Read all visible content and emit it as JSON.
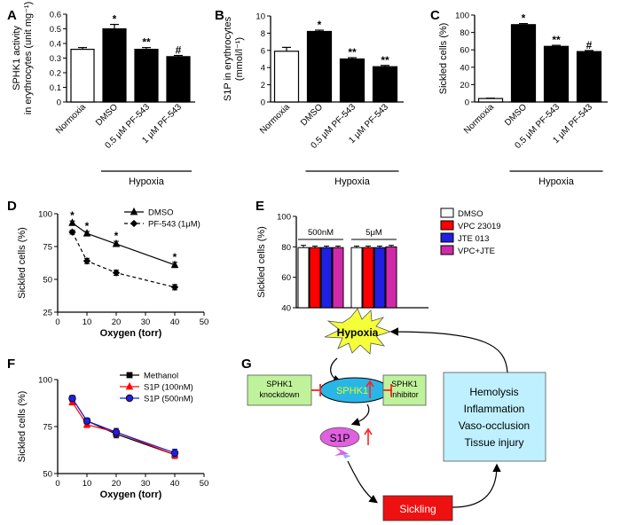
{
  "panels": {
    "A": {
      "label": "A",
      "chart_data": {
        "type": "bar",
        "ylabel": "SPHK1 activity\nin erythrocytes (unit mg⁻¹)",
        "ylim": [
          0,
          0.6
        ],
        "yticks": [
          "0",
          "0.1",
          "0.2",
          "0.3",
          "0.4",
          "0.5",
          "0.6"
        ],
        "categories": [
          "Normoxia",
          "DMSO",
          "0.5 μM PF-543",
          "1 μM PF-543"
        ],
        "values": [
          0.36,
          0.5,
          0.36,
          0.31
        ],
        "errors": [
          0.012,
          0.03,
          0.012,
          0.008
        ],
        "colors": [
          "#ffffff",
          "#000000",
          "#000000",
          "#000000"
        ],
        "annotations": [
          "",
          "*",
          "**",
          "#"
        ],
        "group_label": "Hypoxia"
      }
    },
    "B": {
      "label": "B",
      "chart_data": {
        "type": "bar",
        "ylabel": "S1P in erythrocytes\n(mmol/l⁻¹)",
        "ylim": [
          0,
          10
        ],
        "yticks": [
          "0",
          "2",
          "4",
          "6",
          "8",
          "10"
        ],
        "categories": [
          "Normoxia",
          "DMSO",
          "0.5 μM PF-543",
          "1 μM PF-543"
        ],
        "values": [
          5.9,
          8.2,
          5.0,
          4.1
        ],
        "errors": [
          0.45,
          0.15,
          0.15,
          0.15
        ],
        "colors": [
          "#ffffff",
          "#000000",
          "#000000",
          "#000000"
        ],
        "annotations": [
          "",
          "*",
          "**",
          "**"
        ],
        "group_label": "Hypoxia"
      }
    },
    "C": {
      "label": "C",
      "chart_data": {
        "type": "bar",
        "ylabel": "Sickled cells (%)",
        "ylim": [
          0,
          100
        ],
        "yticks": [
          "0",
          "20",
          "40",
          "60",
          "80",
          "100"
        ],
        "categories": [
          "Normoxia",
          "DMSO",
          "0.5 μM PF-543",
          "1 μM PF-543"
        ],
        "values": [
          4,
          89,
          64,
          58
        ],
        "errors": [
          0.4,
          1.2,
          1.2,
          1.2
        ],
        "colors": [
          "#ffffff",
          "#000000",
          "#000000",
          "#000000"
        ],
        "annotations": [
          "",
          "*",
          "**",
          "#"
        ],
        "group_label": "Hypoxia"
      }
    },
    "D": {
      "label": "D",
      "chart_data": {
        "type": "line",
        "xlabel": "Oxygen (torr)",
        "ylabel": "Sickled cells (%)",
        "xlim": [
          0,
          50
        ],
        "ylim": [
          25,
          100
        ],
        "xticks": [
          "0",
          "10",
          "20",
          "30",
          "40",
          "50"
        ],
        "yticks": [
          "25",
          "50",
          "75",
          "100"
        ],
        "x": [
          5,
          10,
          20,
          40
        ],
        "series": [
          {
            "name": "DMSO",
            "values": [
              93,
              85,
              77,
              61
            ],
            "errors": [
              1.5,
              1.5,
              2,
              2
            ],
            "marker": "triangle",
            "dash": false
          },
          {
            "name": "PF-543 (1μM)",
            "values": [
              86,
              64,
              55,
              44
            ],
            "errors": [
              1.5,
              2,
              2,
              2
            ],
            "marker": "diamond",
            "dash": true
          }
        ],
        "annotations": [
          {
            "x": 5,
            "text": "*"
          },
          {
            "x": 10,
            "text": "*"
          },
          {
            "x": 20,
            "text": "*"
          },
          {
            "x": 40,
            "text": "*"
          }
        ]
      }
    },
    "E": {
      "label": "E",
      "chart_data": {
        "type": "bar",
        "ylabel": "Sickled cells (%)",
        "ylim": [
          40,
          100
        ],
        "yticks": [
          "40",
          "60",
          "80",
          "100"
        ],
        "groups": [
          "500nM",
          "5μM"
        ],
        "series": [
          {
            "name": "DMSO",
            "color": "#ffffff",
            "values": [
              79.5,
              79.5
            ],
            "errors": [
              1.5,
              1
            ]
          },
          {
            "name": "VPC 23019",
            "color": "#ff0000",
            "values": [
              79.5,
              79.5
            ],
            "errors": [
              1,
              1
            ]
          },
          {
            "name": "JTE 013",
            "color": "#2020e0",
            "values": [
              79.5,
              79.5
            ],
            "errors": [
              1,
              1
            ]
          },
          {
            "name": "VPC+JTE",
            "color": "#d02aa8",
            "values": [
              79.5,
              80
            ],
            "errors": [
              1,
              1
            ]
          }
        ]
      }
    },
    "F": {
      "label": "F",
      "chart_data": {
        "type": "line",
        "xlabel": "Oxygen (torr)",
        "ylabel": "Sickled cells (%)",
        "xlim": [
          0,
          50
        ],
        "ylim": [
          50,
          100
        ],
        "xticks": [
          "0",
          "10",
          "20",
          "30",
          "40",
          "50"
        ],
        "yticks": [
          "50",
          "75",
          "100"
        ],
        "x": [
          5,
          10,
          20,
          40
        ],
        "series": [
          {
            "name": "Methanol",
            "values": [
              90,
              78,
              71,
              60
            ],
            "errors": [
              1.5,
              1.5,
              2,
              2
            ],
            "marker": "square",
            "color": "#000000"
          },
          {
            "name": "S1P (100nM)",
            "values": [
              88,
              76,
              72,
              60
            ],
            "errors": [
              1.5,
              1.5,
              2,
              2
            ],
            "marker": "triangle",
            "color": "#ff0000"
          },
          {
            "name": "S1P (500nM)",
            "values": [
              90,
              78,
              72,
              61
            ],
            "errors": [
              1.5,
              1.5,
              2,
              2
            ],
            "marker": "circle",
            "color": "#2020e0"
          }
        ]
      }
    },
    "G": {
      "label": "G",
      "hypoxia": "Hypoxia",
      "sphk1": "SPHK1",
      "s1p": "S1P",
      "sickling": "Sickling",
      "knockdown": [
        "SPHK1",
        "knockdown"
      ],
      "inhibitor": [
        "SPHK1",
        "inhibitor"
      ],
      "outcomes": [
        "Hemolysis",
        "Inflammation",
        "Vaso-occlusion",
        "Tissue injury"
      ],
      "colors": {
        "burst": "#f4ff3a",
        "sphk1": "#29b6e6",
        "sphk1_text": "#d8ff20",
        "s1p": "#e060e0",
        "green_box": "#bff29a",
        "cyan_box": "#bff0ff",
        "sickling": "#ee1111",
        "inhibit": "#ff2020"
      }
    }
  }
}
